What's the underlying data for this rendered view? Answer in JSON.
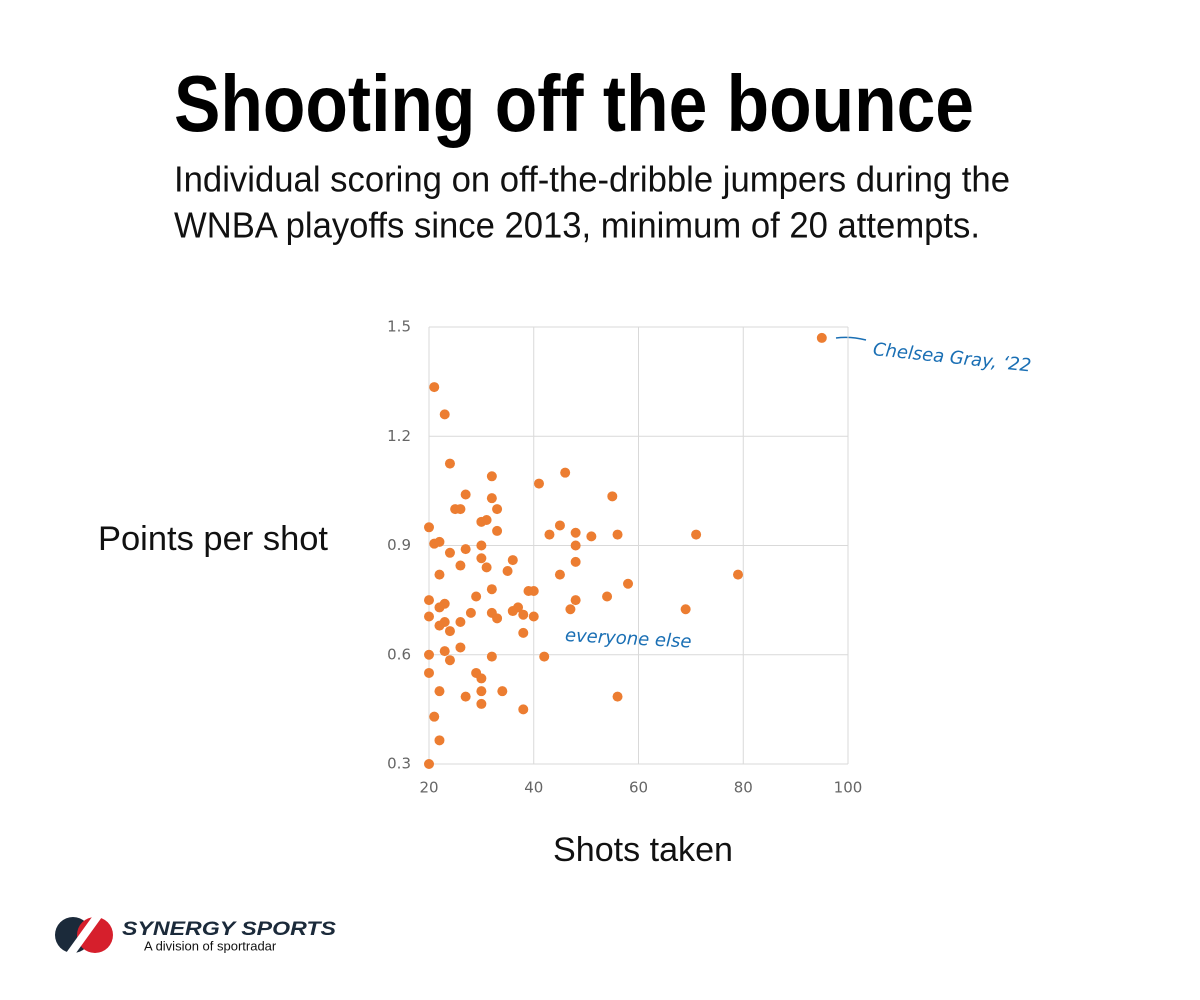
{
  "chart_data": {
    "type": "scatter",
    "title": "Shooting off the bounce",
    "subtitle": [
      "Individual scoring on off-the-dribble jumpers during the",
      "WNBA playoffs since 2013, minimum of 20 attempts."
    ],
    "x_label": "Shots taken",
    "y_label": "Points per shot",
    "annotations": [
      "Chelsea Gray, ‘22",
      "everyone else"
    ],
    "logo": {
      "name": "SYNERGY SPORTS",
      "tagline": "A division of sportradar"
    },
    "xlim": [
      20,
      100
    ],
    "xticks": [
      20,
      40,
      60,
      80,
      100
    ],
    "ylim": [
      0.3,
      1.5
    ],
    "yticks": [
      0.3,
      0.6,
      0.9,
      1.2,
      1.5
    ],
    "grid": true,
    "series": [
      {
        "color": "#ec7d31",
        "x": [
          95,
          21,
          23,
          24,
          32,
          46,
          41,
          27,
          32,
          55,
          25,
          26,
          33,
          30,
          31,
          20,
          33,
          45,
          43,
          48,
          51,
          56,
          71,
          21,
          22,
          30,
          48,
          24,
          27,
          30,
          36,
          26,
          31,
          48,
          22,
          35,
          45,
          79,
          58,
          32,
          29,
          39,
          40,
          48,
          54,
          20,
          23,
          22,
          37,
          36,
          32,
          47,
          69,
          28,
          38,
          20,
          40,
          33,
          23,
          26,
          22,
          24,
          38,
          26,
          23,
          20,
          42,
          32,
          24,
          29,
          20,
          30,
          22,
          30,
          34,
          27,
          56,
          30,
          38,
          21,
          22,
          20
        ],
        "y": [
          1.47,
          1.335,
          1.26,
          1.125,
          1.09,
          1.1,
          1.07,
          1.04,
          1.03,
          1.035,
          1.0,
          1.0,
          1.0,
          0.965,
          0.97,
          0.95,
          0.94,
          0.955,
          0.93,
          0.935,
          0.925,
          0.93,
          0.93,
          0.905,
          0.91,
          0.9,
          0.9,
          0.88,
          0.89,
          0.865,
          0.86,
          0.845,
          0.84,
          0.855,
          0.82,
          0.83,
          0.82,
          0.82,
          0.795,
          0.78,
          0.76,
          0.775,
          0.775,
          0.75,
          0.76,
          0.75,
          0.74,
          0.73,
          0.73,
          0.72,
          0.715,
          0.725,
          0.725,
          0.715,
          0.71,
          0.705,
          0.705,
          0.7,
          0.69,
          0.69,
          0.68,
          0.665,
          0.66,
          0.62,
          0.61,
          0.6,
          0.595,
          0.595,
          0.585,
          0.55,
          0.55,
          0.535,
          0.5,
          0.5,
          0.5,
          0.485,
          0.485,
          0.465,
          0.45,
          0.43,
          0.365,
          0.3
        ]
      }
    ]
  }
}
